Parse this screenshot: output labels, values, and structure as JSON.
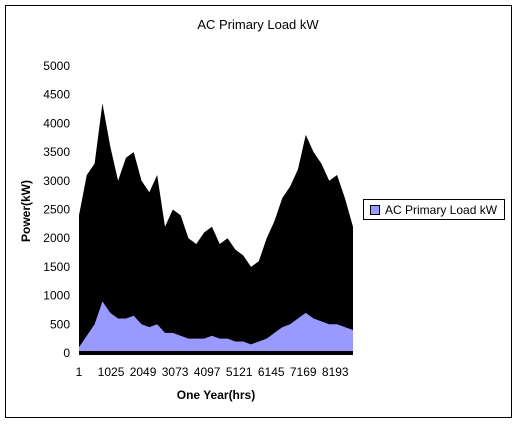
{
  "chart_data": {
    "type": "area",
    "title": "AC Primary Load kW",
    "xlabel": "One Year(hrs)",
    "ylabel": "Power(kW)",
    "ylim": [
      0,
      5000
    ],
    "xlim": [
      1,
      8760
    ],
    "y_ticks": [
      0,
      500,
      1000,
      1500,
      2000,
      2500,
      3000,
      3500,
      4000,
      4500,
      5000
    ],
    "x_tick_labels": [
      "1",
      "1025",
      "2049",
      "3073",
      "4097",
      "5121",
      "6145",
      "7169",
      "8193"
    ],
    "x_tick_values": [
      1,
      1025,
      2049,
      3073,
      4097,
      5121,
      6145,
      7169,
      8193
    ],
    "legend": {
      "position": "right",
      "entries": [
        "AC Primary Load kW"
      ]
    },
    "grid": false,
    "series": [
      {
        "name": "AC Primary Load kW",
        "x": [
          1,
          250,
          500,
          750,
          1000,
          1250,
          1500,
          1750,
          2000,
          2250,
          2500,
          2750,
          3000,
          3250,
          3500,
          3750,
          4000,
          4250,
          4500,
          4750,
          5000,
          5250,
          5500,
          5750,
          6000,
          6250,
          6500,
          6750,
          7000,
          7250,
          7500,
          7750,
          8000,
          8250,
          8500,
          8760
        ],
        "values": [
          2400,
          3100,
          3300,
          4350,
          3600,
          3000,
          3400,
          3500,
          3000,
          2800,
          3100,
          2200,
          2500,
          2400,
          2000,
          1900,
          2100,
          2200,
          1900,
          2000,
          1800,
          1700,
          1500,
          1600,
          2000,
          2300,
          2700,
          2900,
          3200,
          3800,
          3500,
          3300,
          3000,
          3100,
          2700,
          2200
        ],
        "base_values": [
          100,
          300,
          500,
          900,
          700,
          600,
          600,
          650,
          500,
          450,
          500,
          350,
          350,
          300,
          250,
          250,
          250,
          300,
          250,
          250,
          200,
          200,
          150,
          200,
          250,
          350,
          450,
          500,
          600,
          700,
          600,
          550,
          500,
          500,
          450,
          400
        ]
      }
    ],
    "colors": {
      "load": "#000000",
      "base_fill": "#9999ff",
      "baseline": "#000000"
    }
  }
}
